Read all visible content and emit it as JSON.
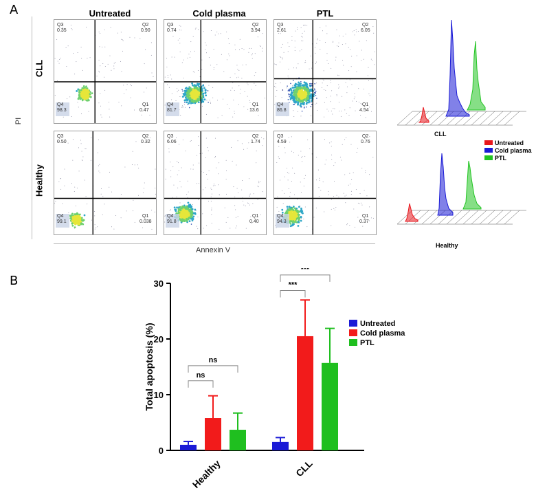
{
  "panel_a": {
    "letter": "A",
    "columns": [
      "Untreated",
      "Cold plasma",
      "PTL"
    ],
    "rows": [
      "CLL",
      "Healthy"
    ],
    "y_axis_label": "PI",
    "x_axis_label": "Annexin V",
    "plots": [
      {
        "row": "CLL",
        "column": "Untreated",
        "q3": "Q3",
        "q3_val": "0.35",
        "q2": "Q2",
        "q2_val": "0.90",
        "q4": "Q4",
        "q4_val": "98.3",
        "q1": "Q1",
        "q1_val": "0.47"
      },
      {
        "row": "CLL",
        "column": "Cold plasma",
        "q3": "Q3",
        "q3_val": "0.74",
        "q2": "Q2",
        "q2_val": "3.94",
        "q4": "Q4",
        "q4_val": "81.7",
        "q1": "Q1",
        "q1_val": "13.6"
      },
      {
        "row": "CLL",
        "column": "PTL",
        "q3": "Q3",
        "q3_val": "2.61",
        "q2": "Q2",
        "q2_val": "6.05",
        "q4": "Q4",
        "q4_val": "86.8",
        "q1": "Q1",
        "q1_val": "4.54"
      },
      {
        "row": "Healthy",
        "column": "Untreated",
        "q3": "Q3",
        "q3_val": "0.50",
        "q2": "Q2",
        "q2_val": "0.32",
        "q4": "Q4",
        "q4_val": "99.1",
        "q1": "Q1",
        "q1_val": "0.038"
      },
      {
        "row": "Healthy",
        "column": "Cold plasma",
        "q3": "Q3",
        "q3_val": "6.06",
        "q2": "Q2",
        "q2_val": "1.74",
        "q4": "Q4",
        "q4_val": "91.8",
        "q1": "Q1",
        "q1_val": "0.40"
      },
      {
        "row": "Healthy",
        "column": "PTL",
        "q3": "Q3",
        "q3_val": "4.59",
        "q2": "Q2",
        "q2_val": "0.76",
        "q4": "Q4",
        "q4_val": "94.3",
        "q1": "Q1",
        "q1_val": "0.37"
      }
    ],
    "histograms": [
      {
        "label": "CLL"
      },
      {
        "label": "Healthy"
      }
    ],
    "legend": [
      {
        "name": "Untreated",
        "color": "#e8161c"
      },
      {
        "name": "Cold plasma",
        "color": "#1a1ad6"
      },
      {
        "name": "PTL",
        "color": "#22c422"
      }
    ]
  },
  "panel_b": {
    "letter": "B"
  },
  "chart_data": {
    "type": "bar",
    "title": "",
    "xlabel": "",
    "ylabel": "Total apoptosis (%)",
    "ylim": [
      0,
      30
    ],
    "yticks": [
      "0",
      "10",
      "20",
      "30"
    ],
    "categories": [
      "Healthy",
      "CLL"
    ],
    "series": [
      {
        "name": "Untreated",
        "color": "#1a1ad6",
        "values": [
          1.0,
          1.5
        ],
        "errors": [
          0.6,
          0.8
        ]
      },
      {
        "name": "Cold plasma",
        "color": "#f21b1b",
        "values": [
          5.8,
          20.5
        ],
        "errors": [
          4.0,
          6.5
        ]
      },
      {
        "name": "PTL",
        "color": "#1fbf1f",
        "values": [
          3.7,
          15.7
        ],
        "errors": [
          3.0,
          6.2
        ]
      }
    ],
    "annotations": [
      {
        "group": "Healthy",
        "from": "Untreated",
        "to": "Cold plasma",
        "text": "ns"
      },
      {
        "group": "Healthy",
        "from": "Untreated",
        "to": "PTL",
        "text": "ns"
      },
      {
        "group": "CLL",
        "from": "Untreated",
        "to": "Cold plasma",
        "text": "***"
      },
      {
        "group": "CLL",
        "from": "Untreated",
        "to": "PTL",
        "text": "***"
      }
    ]
  }
}
